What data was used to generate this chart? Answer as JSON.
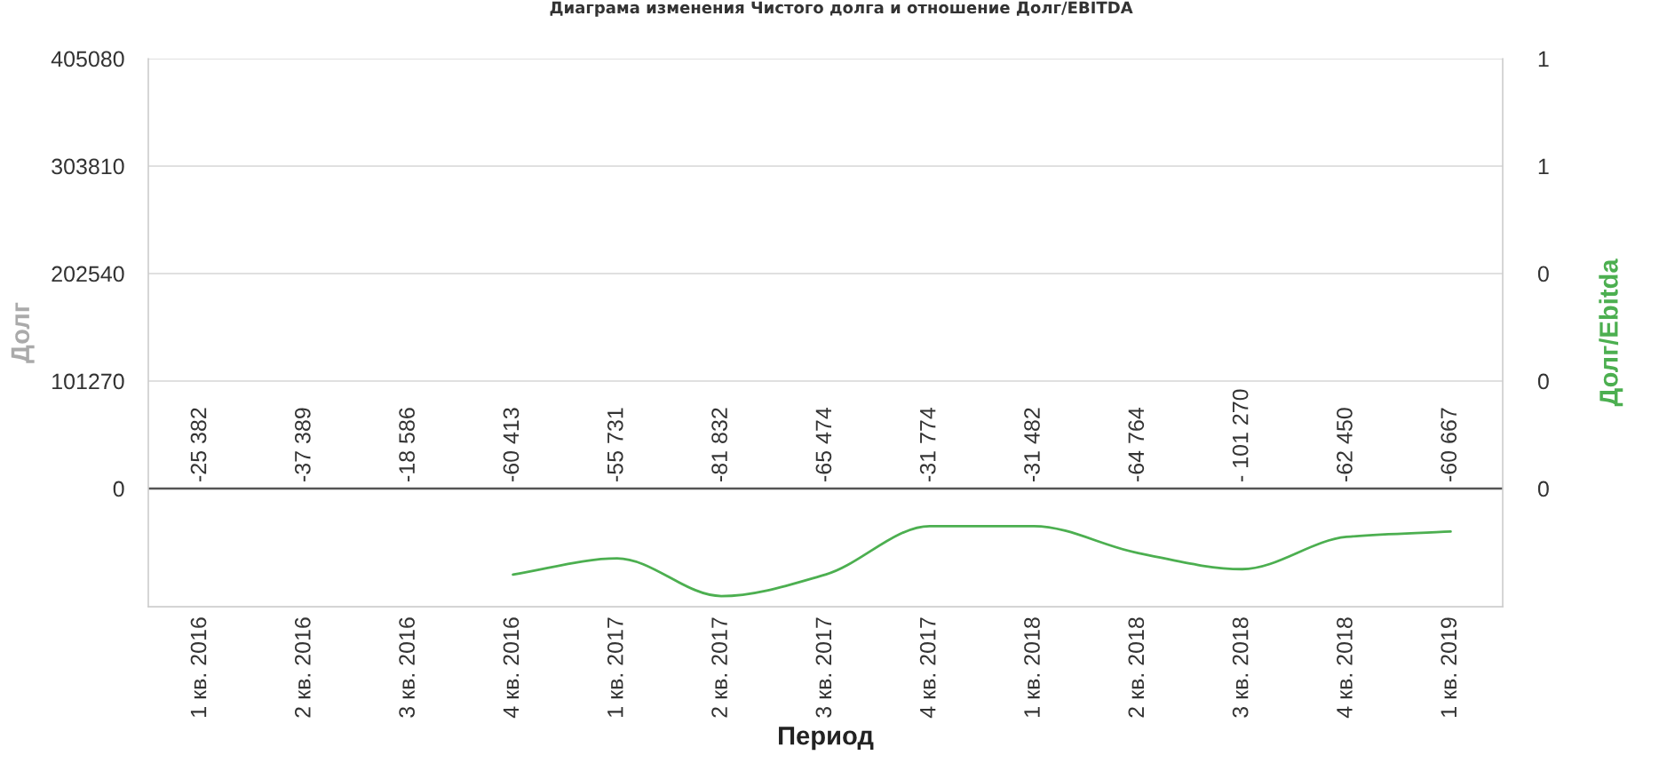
{
  "chart_data": {
    "type": "line",
    "title": "Диаграма изменения Чистого долга и отношение Долг/EBITDA",
    "xlabel": "Период",
    "ylabel": "Долг",
    "y2label": "Долг/Ebitda",
    "categories": [
      "1 кв. 2016",
      "2 кв. 2016",
      "3 кв. 2016",
      "4 кв. 2016",
      "1 кв. 2017",
      "2 кв. 2017",
      "3 кв. 2017",
      "4 кв. 2017",
      "1 кв. 2018",
      "2 кв. 2018",
      "3 кв. 2018",
      "4 кв. 2018",
      "1 кв. 2019"
    ],
    "series": [
      {
        "axis": "y2",
        "color": "#4caf50",
        "values": [
          null,
          null,
          null,
          -0.16,
          -0.13,
          -0.2,
          -0.16,
          -0.07,
          -0.07,
          -0.12,
          -0.15,
          -0.09,
          -0.08
        ]
      }
    ],
    "ylim": [
      -111397,
      405080
    ],
    "yticks": [
      0,
      101270,
      202540,
      303810,
      405080
    ],
    "y2lim": [
      -0.22,
      0.8
    ],
    "y2ticks": [
      0,
      {
        "value": 0.2,
        "label": "0"
      },
      {
        "value": 0.4,
        "label": "0"
      },
      {
        "value": 0.6,
        "label": "1"
      },
      {
        "value": 0.8,
        "label": "1"
      }
    ],
    "grid": "y",
    "annotations": [
      "-25 382",
      "-37 389",
      "-18 586",
      "-60 413",
      "-55 731",
      "-81 832",
      "-65 474",
      "-31 774",
      "-31 482",
      "-64 764",
      "- 101 270",
      "-62 450",
      "-60 667"
    ]
  }
}
